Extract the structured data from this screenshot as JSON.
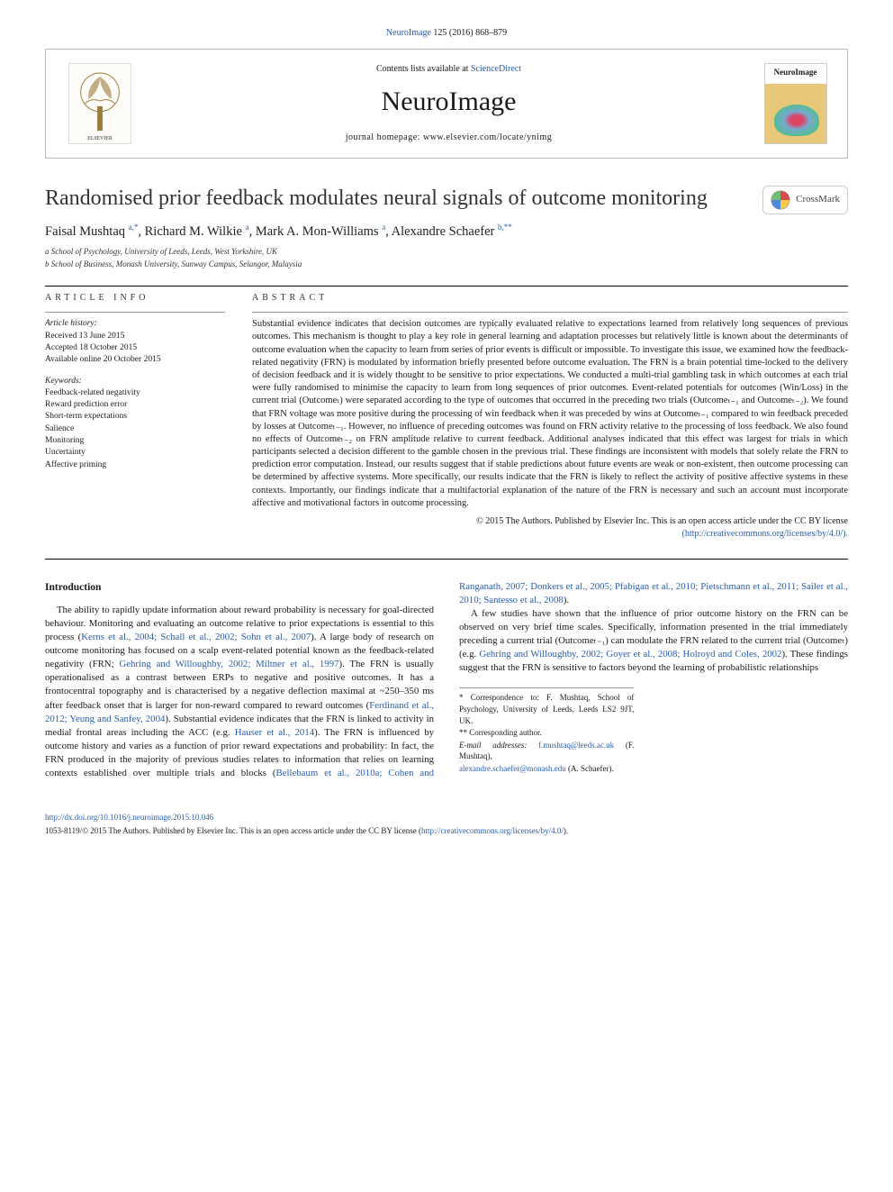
{
  "citation": {
    "journal_link": "NeuroImage",
    "vol_pages": " 125 (2016) 868–879"
  },
  "header": {
    "contents_prefix": "Contents lists available at ",
    "contents_link": "ScienceDirect",
    "journal_name": "NeuroImage",
    "homepage_prefix": "journal homepage: ",
    "homepage_url": "www.elsevier.com/locate/ynimg",
    "cover_label": "NeuroImage"
  },
  "crossmark_label": "CrossMark",
  "title": "Randomised prior feedback modulates neural signals of outcome monitoring",
  "authors_html": "Faisal Mushtaq <sup>a,*</sup>, Richard M. Wilkie <sup>a</sup>, Mark A. Mon-Williams <sup>a</sup>, Alexandre Schaefer <sup>b,**</sup>",
  "affiliations": {
    "a": "a  School of Psychology, University of Leeds, Leeds, West Yorkshire, UK",
    "b": "b  School of Business, Monash University, Sunway Campus, Selangor, Malaysia"
  },
  "article_info": {
    "heading": "article info",
    "history_label": "Article history:",
    "received": "Received 13 June 2015",
    "accepted": "Accepted 18 October 2015",
    "online": "Available online 20 October 2015",
    "keywords_label": "Keywords:",
    "keywords": [
      "Feedback-related negativity",
      "Reward prediction error",
      "Short-term expectations",
      "Salience",
      "Monitoring",
      "Uncertainty",
      "Affective priming"
    ]
  },
  "abstract": {
    "heading": "abstract",
    "text": "Substantial evidence indicates that decision outcomes are typically evaluated relative to expectations learned from relatively long sequences of previous outcomes. This mechanism is thought to play a key role in general learning and adaptation processes but relatively little is known about the determinants of outcome evaluation when the capacity to learn from series of prior events is difficult or impossible. To investigate this issue, we examined how the feedback-related negativity (FRN) is modulated by information briefly presented before outcome evaluation. The FRN is a brain potential time-locked to the delivery of decision feedback and it is widely thought to be sensitive to prior expectations. We conducted a multi-trial gambling task in which outcomes at each trial were fully randomised to minimise the capacity to learn from long sequences of prior outcomes. Event-related potentials for outcomes (Win/Loss) in the current trial (Outcomeₜ) were separated according to the type of outcomes that occurred in the preceding two trials (Outcomeₜ₋₁ and Outcomeₜ₋₂). We found that FRN voltage was more positive during the processing of win feedback when it was preceded by wins at Outcomeₜ₋₁ compared to win feedback preceded by losses at Outcomeₜ₋₁. However, no influence of preceding outcomes was found on FRN activity relative to the processing of loss feedback. We also found no effects of Outcomeₜ₋₂ on FRN amplitude relative to current feedback. Additional analyses indicated that this effect was largest for trials in which participants selected a decision different to the gamble chosen in the previous trial. These findings are inconsistent with models that solely relate the FRN to prediction error computation. Instead, our results suggest that if stable predictions about future events are weak or non-existent, then outcome processing can be determined by affective systems. More specifically, our results indicate that the FRN is likely to reflect the activity of positive affective systems in these contexts. Importantly, our findings indicate that a multifactorial explanation of the nature of the FRN is necessary and such an account must incorporate affective and motivational factors in outcome processing.",
    "copyright": "© 2015 The Authors. Published by Elsevier Inc. This is an open access article under the CC BY license",
    "license_url": "(http://creativecommons.org/licenses/by/4.0/)."
  },
  "body": {
    "intro_heading": "Introduction",
    "p1_pre": "The ability to rapidly update information about reward probability is necessary for goal-directed behaviour. Monitoring and evaluating an outcome relative to prior expectations is essential to this process (",
    "p1_link1": "Kerns et al., 2004; Schall et al., 2002; Sohn et al., 2007",
    "p1_mid1": "). A large body of research on outcome monitoring has focused on a scalp event-related potential known as the feedback-related negativity (FRN; ",
    "p1_link2": "Gehring and Willoughby, 2002; Miltner et al., 1997",
    "p1_mid2": "). The FRN is usually operationalised as a contrast between ERPs to negative and positive outcomes. It has a frontocentral topography and is characterised by a negative deflection maximal at ~250–350 ms after feedback onset that is larger for non-reward compared to reward outcomes (",
    "p1_link3": "Ferdinand et al., 2012; Yeung and Sanfey, 2004",
    "p1_mid3": "). Substantial evidence indicates that the FRN is linked to activity in medial frontal areas including the ACC (e.g. ",
    "p1_link4": "Hauser et al., 2014",
    "p1_mid4": "). The FRN is influenced by outcome history and varies as a function of prior reward expectations and probability: In fact, the FRN produced in the majority of previous studies relates to information that relies on learning contexts established over multiple trials and blocks (",
    "p1_link5": "Bellebaum et al., 2010a; Cohen and Ranganath, 2007; Donkers et al., 2005; Pfabigan et al., 2010; Pietschmann et al., 2011; Sailer et al., 2010; Santesso et al., 2008",
    "p1_post": ").",
    "p2_pre": "A few studies have shown that the influence of prior outcome history on the FRN can be observed on very brief time scales. Specifically, information presented in the trial immediately preceding a current trial (Outcomeₜ₋₁) can modulate the FRN related to the current trial (Outcomeₜ) (e.g. ",
    "p2_link1": "Gehring and Willoughby, 2002; Goyer et al., 2008; Holroyd and Coles, 2002",
    "p2_post": "). These findings suggest that the FRN is sensitive to factors beyond the learning of probabilistic relationships"
  },
  "footnotes": {
    "corr1": "* Correspondence to: F. Mushtaq, School of Psychology, University of Leeds, Leeds LS2 9JT, UK.",
    "corr2": "** Corresponding author.",
    "email_label": "E-mail addresses: ",
    "email1": "f.mushtaq@leeds.ac.uk",
    "email1_name": " (F. Mushtaq),",
    "email2": "alexandre.schaefer@monash.edu",
    "email2_name": " (A. Schaefer)."
  },
  "bottom": {
    "doi": "http://dx.doi.org/10.1016/j.neuroimage.2015.10.046",
    "issn_line_pre": "1053-8119/© 2015 The Authors. Published by Elsevier Inc. This is an open access article under the CC BY license (",
    "issn_link": "http://creativecommons.org/licenses/by/4.0/",
    "issn_line_post": ")."
  },
  "colors": {
    "link": "#2a5db0",
    "text": "#1a1a1a",
    "border": "#bbbbbb",
    "rule": "#000000"
  }
}
